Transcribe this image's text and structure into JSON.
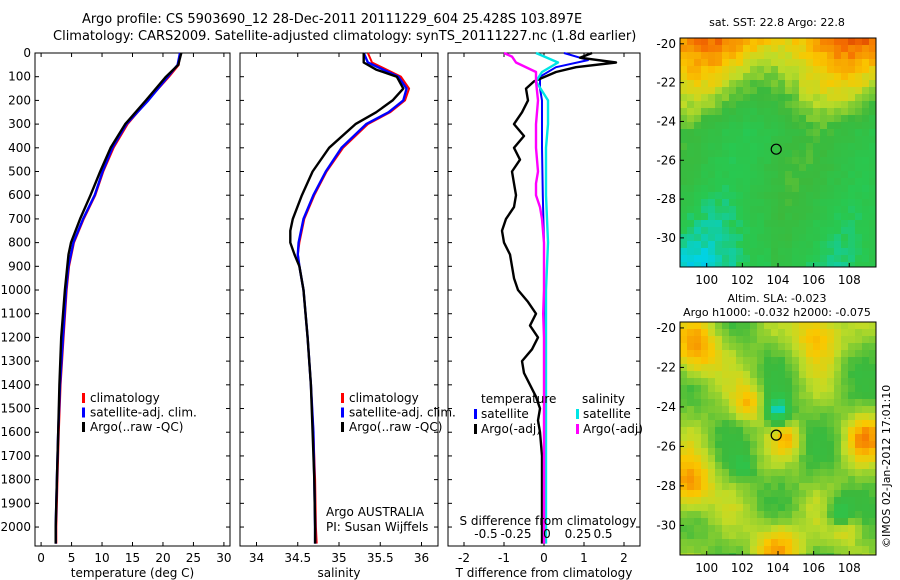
{
  "header": {
    "line1": "Argo profile: CS 5903690_12 28-Dec-2011 20111229_604 25.428S 103.897E",
    "line2": "Climatology: CARS2009. Satellite-adjusted climatology: synTS_20111227.nc (1.8d earlier)"
  },
  "side_note": "©IMOS 02-Jan-2012 17:01:10",
  "colors": {
    "climatology": "#ff0000",
    "satellite": "#0000ff",
    "argo": "#000000",
    "sal_satellite": "#00e5e5",
    "sal_argo": "#ff00ff"
  },
  "chart_data": [
    {
      "type": "line",
      "panel": "temperature",
      "xlabel": "temperature (deg C)",
      "xlim": [
        -1,
        31
      ],
      "xticks": [
        0,
        5,
        10,
        15,
        20,
        25,
        30
      ],
      "ylim": [
        2080,
        0
      ],
      "yticks": [
        0,
        100,
        200,
        300,
        400,
        500,
        600,
        700,
        800,
        900,
        1000,
        1100,
        1200,
        1300,
        1400,
        1500,
        1600,
        1700,
        1800,
        1900,
        2000
      ],
      "legend": [
        "climatology",
        "satellite-adj. clim.",
        "Argo(..raw -QC)"
      ],
      "series": [
        {
          "name": "climatology",
          "color": "#ff0000",
          "depth": [
            0,
            50,
            100,
            200,
            300,
            400,
            500,
            600,
            700,
            800,
            900,
            1000,
            1200,
            1400,
            1600,
            1800,
            2000,
            2070
          ],
          "values": [
            22.8,
            22.6,
            21.0,
            17.5,
            14.2,
            11.9,
            10.2,
            8.9,
            7.0,
            5.4,
            4.6,
            4.2,
            3.7,
            3.2,
            2.9,
            2.7,
            2.5,
            2.5
          ]
        },
        {
          "name": "satellite-adj. clim.",
          "color": "#0000ff",
          "depth": [
            0,
            50,
            100,
            200,
            300,
            400,
            500,
            600,
            700,
            800,
            900,
            1000,
            1200,
            1400,
            1600,
            1800,
            2000,
            2070
          ],
          "values": [
            22.8,
            22.4,
            20.8,
            17.6,
            14.0,
            11.7,
            10.1,
            8.8,
            6.9,
            5.3,
            4.5,
            4.1,
            3.6,
            3.1,
            2.8,
            2.6,
            2.4,
            2.4
          ]
        },
        {
          "name": "Argo(..raw -QC)",
          "color": "#000000",
          "depth": [
            0,
            50,
            100,
            200,
            300,
            400,
            500,
            600,
            700,
            800,
            850,
            900,
            1000,
            1200,
            1400,
            1600,
            1800,
            2000,
            2070
          ],
          "values": [
            23.0,
            22.5,
            20.5,
            17.2,
            13.8,
            11.4,
            9.7,
            8.1,
            6.4,
            4.9,
            4.5,
            4.3,
            3.9,
            3.3,
            3.0,
            2.8,
            2.6,
            2.4,
            2.4
          ]
        }
      ]
    },
    {
      "type": "line",
      "panel": "salinity",
      "xlabel": "salinity",
      "xlim": [
        33.8,
        36.2
      ],
      "xticks": [
        34,
        34.5,
        35,
        35.5,
        36
      ],
      "ylim": [
        2080,
        0
      ],
      "legend": [
        "climatology",
        "satellite-adj. clim.",
        "Argo(..raw -QC)"
      ],
      "annotation": [
        "Argo AUSTRALIA",
        "PI: Susan Wijffels"
      ],
      "series": [
        {
          "name": "climatology",
          "color": "#ff0000",
          "depth": [
            0,
            40,
            100,
            150,
            200,
            250,
            300,
            400,
            500,
            600,
            700,
            800,
            850,
            900,
            1000,
            1200,
            1400,
            1600,
            1800,
            2000,
            2070
          ],
          "values": [
            35.35,
            35.4,
            35.75,
            35.85,
            35.8,
            35.62,
            35.35,
            35.05,
            34.85,
            34.7,
            34.58,
            34.52,
            34.5,
            34.52,
            34.57,
            34.62,
            34.66,
            34.69,
            34.71,
            34.72,
            34.73
          ]
        },
        {
          "name": "satellite-adj. clim.",
          "color": "#0000ff",
          "depth": [
            0,
            40,
            100,
            150,
            200,
            250,
            300,
            400,
            500,
            600,
            700,
            800,
            850,
            900,
            1000,
            1200,
            1400,
            1600,
            1800,
            2000,
            2070
          ],
          "values": [
            35.3,
            35.35,
            35.72,
            35.82,
            35.78,
            35.6,
            35.33,
            35.03,
            34.84,
            34.69,
            34.57,
            34.51,
            34.5,
            34.52,
            34.57,
            34.62,
            34.66,
            34.69,
            34.7,
            34.71,
            34.71
          ]
        },
        {
          "name": "Argo(..raw -QC)",
          "color": "#000000",
          "depth": [
            0,
            40,
            70,
            100,
            150,
            200,
            250,
            300,
            400,
            500,
            600,
            700,
            750,
            800,
            850,
            900,
            1000,
            1200,
            1400,
            1600,
            1800,
            2000,
            2070
          ],
          "values": [
            35.3,
            35.3,
            35.45,
            35.7,
            35.78,
            35.65,
            35.45,
            35.2,
            34.88,
            34.68,
            34.55,
            34.44,
            34.41,
            34.41,
            34.46,
            34.52,
            34.57,
            34.62,
            34.66,
            34.68,
            34.7,
            34.71,
            34.71
          ]
        }
      ]
    },
    {
      "type": "line",
      "panel": "differences",
      "xlabel": "T difference from climatology",
      "xlabel_top": "S difference from climatology",
      "xlim": [
        -2.4,
        2.4
      ],
      "xticks": [
        -2,
        -1,
        0,
        1,
        2
      ],
      "sticks": [
        "-0.5",
        "-0.25",
        "0",
        "0.25",
        "0.5"
      ],
      "ylim": [
        2080,
        0
      ],
      "legend_titles": [
        "temperature",
        "salinity"
      ],
      "legend": [
        "satellite",
        "Argo(-adj)",
        "satellite",
        "Argo(-adj)"
      ],
      "series": [
        {
          "name": "temperature satellite",
          "color": "#0000ff",
          "depth": [
            0,
            30,
            60,
            100,
            150,
            200,
            300,
            400,
            600,
            800,
            1000,
            1200,
            1500,
            1800,
            2070
          ],
          "values": [
            0.5,
            1.1,
            0.3,
            -0.1,
            -0.1,
            -0.05,
            -0.05,
            -0.05,
            -0.03,
            0.0,
            0.0,
            0.0,
            0.0,
            0.0,
            0.0
          ]
        },
        {
          "name": "temperature Argo(-adj)",
          "color": "#000000",
          "depth": [
            0,
            20,
            40,
            60,
            80,
            120,
            150,
            200,
            250,
            300,
            350,
            400,
            450,
            500,
            550,
            600,
            650,
            700,
            750,
            800,
            850,
            900,
            950,
            1000,
            1050,
            1100,
            1150,
            1200,
            1250,
            1300,
            1350,
            1400,
            1450,
            1500,
            1550,
            1600,
            1700,
            1800,
            1900,
            2000,
            2070
          ],
          "values": [
            1.2,
            0.9,
            1.8,
            0.8,
            0.3,
            -0.25,
            -0.45,
            -0.4,
            -0.55,
            -0.75,
            -0.5,
            -0.75,
            -0.6,
            -0.8,
            -0.75,
            -0.7,
            -0.75,
            -0.95,
            -1.05,
            -1.0,
            -0.85,
            -0.8,
            -0.75,
            -0.65,
            -0.4,
            -0.2,
            -0.35,
            -0.15,
            -0.3,
            -0.55,
            -0.5,
            -0.35,
            -0.2,
            -0.1,
            -0.15,
            -0.1,
            -0.05,
            -0.05,
            -0.05,
            -0.05,
            -0.05
          ]
        },
        {
          "name": "salinity satellite",
          "color": "#00e5e5",
          "depth": [
            0,
            40,
            80,
            120,
            200,
            300,
            400,
            600,
            800,
            1000,
            1200,
            1500,
            1800,
            2070
          ],
          "values": [
            -0.2,
            0.35,
            -0.05,
            -0.2,
            0.1,
            0.1,
            0.05,
            0.05,
            0.1,
            0.05,
            0.05,
            0.05,
            0.05,
            0.05
          ]
        },
        {
          "name": "salinity Argo(-adj)",
          "color": "#ff00ff",
          "depth": [
            0,
            15,
            40,
            80,
            120,
            200,
            300,
            400,
            500,
            550,
            600,
            650,
            700,
            800,
            900,
            1000,
            1100,
            1200,
            1400,
            1600,
            1800,
            2070
          ],
          "values": [
            -1.0,
            -0.8,
            -0.7,
            -0.2,
            -0.2,
            -0.15,
            -0.2,
            -0.2,
            -0.15,
            -0.2,
            -0.2,
            -0.1,
            -0.05,
            0.0,
            0.0,
            0.0,
            -0.02,
            0.0,
            0.0,
            0.0,
            0.0,
            0.0
          ]
        }
      ]
    },
    {
      "type": "heatmap",
      "panel": "sst_map",
      "title": "sat. SST: 22.8  Argo: 22.8",
      "xlim": [
        98.5,
        109.5
      ],
      "ylim": [
        -31.5,
        -19.7
      ],
      "xticks": [
        100,
        102,
        104,
        106,
        108
      ],
      "yticks": [
        -20,
        -22,
        -24,
        -26,
        -28,
        -30
      ],
      "marker": {
        "lon": 103.9,
        "lat": -25.43
      }
    },
    {
      "type": "heatmap",
      "panel": "sla_map",
      "title_line1": "Altim. SLA: -0.023",
      "title_line2": "Argo h1000: -0.032  h2000: -0.075",
      "xlim": [
        98.5,
        109.5
      ],
      "ylim": [
        -31.5,
        -19.7
      ],
      "xticks": [
        100,
        102,
        104,
        106,
        108
      ],
      "yticks": [
        -20,
        -22,
        -24,
        -26,
        -28,
        -30
      ],
      "marker": {
        "lon": 103.9,
        "lat": -25.43
      }
    }
  ]
}
